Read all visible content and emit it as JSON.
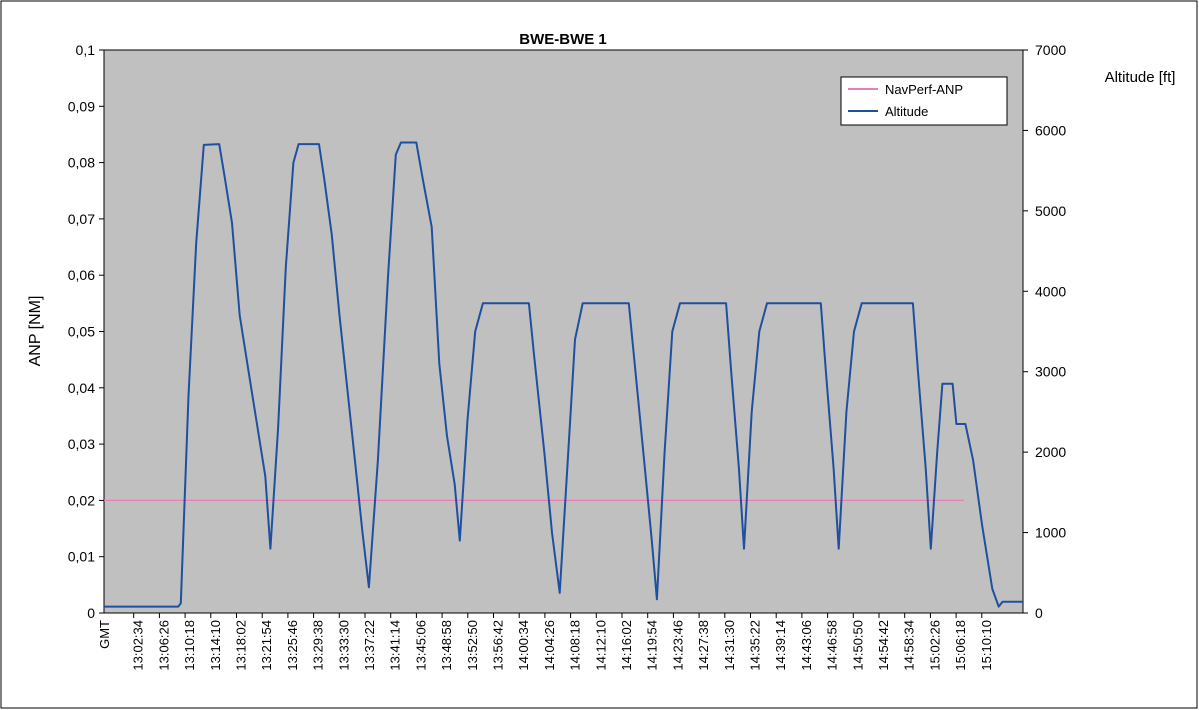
{
  "chart_data": {
    "type": "line",
    "title": "BWE-BWE 1",
    "ylabel": "ANP [NM]",
    "y2label": "Altitude [ft]",
    "xaxis_unit_label": "GMT",
    "ylim": [
      0,
      0.1
    ],
    "y2lim": [
      0,
      7000
    ],
    "yticks": [
      "0",
      "0,01",
      "0,02",
      "0,03",
      "0,04",
      "0,05",
      "0,06",
      "0,07",
      "0,08",
      "0,09",
      "0,1"
    ],
    "y2ticks": [
      "0",
      "1000",
      "2000",
      "3000",
      "4000",
      "5000",
      "6000",
      "7000"
    ],
    "x_ticks": [
      "13:02:34",
      "13:06:26",
      "13:10:18",
      "13:14:10",
      "13:18:02",
      "13:21:54",
      "13:25:46",
      "13:29:38",
      "13:33:30",
      "13:37:22",
      "13:41:14",
      "13:45:06",
      "13:48:58",
      "13:52:50",
      "13:56:42",
      "14:00:34",
      "14:04:26",
      "14:08:18",
      "14:12:10",
      "14:16:02",
      "14:19:54",
      "14:23:46",
      "14:27:38",
      "14:31:30",
      "14:35:22",
      "14:39:14",
      "14:43:06",
      "14:46:58",
      "14:50:50",
      "14:54:42",
      "14:58:34",
      "15:02:26",
      "15:06:18",
      "15:10:10"
    ],
    "grid": false,
    "legend_position": "top-right",
    "background_color": "#c0c0c0",
    "series": [
      {
        "name": "NavPerf-ANP",
        "axis": "left",
        "color": "#e67fb7",
        "points": [
          [
            0,
            0.02
          ],
          [
            33.6,
            0.02
          ]
        ]
      },
      {
        "name": "Altitude",
        "axis": "right",
        "color": "#1f4fa0",
        "points": [
          [
            0,
            80
          ],
          [
            2.9,
            80
          ],
          [
            3.0,
            120
          ],
          [
            3.3,
            2700
          ],
          [
            3.6,
            4600
          ],
          [
            3.9,
            5820
          ],
          [
            4.5,
            5830
          ],
          [
            4.7,
            5450
          ],
          [
            5.0,
            4850
          ],
          [
            5.3,
            3700
          ],
          [
            5.7,
            2900
          ],
          [
            6.0,
            2300
          ],
          [
            6.3,
            1700
          ],
          [
            6.5,
            800
          ],
          [
            6.8,
            2300
          ],
          [
            7.1,
            4300
          ],
          [
            7.4,
            5600
          ],
          [
            7.6,
            5830
          ],
          [
            8.4,
            5830
          ],
          [
            8.6,
            5400
          ],
          [
            8.9,
            4700
          ],
          [
            9.2,
            3700
          ],
          [
            9.5,
            2800
          ],
          [
            9.8,
            1900
          ],
          [
            10.1,
            1000
          ],
          [
            10.35,
            320
          ],
          [
            10.7,
            1900
          ],
          [
            11.1,
            4200
          ],
          [
            11.4,
            5700
          ],
          [
            11.6,
            5850
          ],
          [
            12.2,
            5850
          ],
          [
            12.45,
            5400
          ],
          [
            12.8,
            4800
          ],
          [
            13.1,
            3100
          ],
          [
            13.4,
            2200
          ],
          [
            13.7,
            1600
          ],
          [
            13.9,
            900
          ],
          [
            14.2,
            2400
          ],
          [
            14.5,
            3500
          ],
          [
            14.8,
            3850
          ],
          [
            16.6,
            3850
          ],
          [
            16.8,
            3200
          ],
          [
            17.2,
            2000
          ],
          [
            17.5,
            1000
          ],
          [
            17.8,
            250
          ],
          [
            18.1,
            1800
          ],
          [
            18.4,
            3400
          ],
          [
            18.7,
            3850
          ],
          [
            20.5,
            3850
          ],
          [
            20.7,
            3200
          ],
          [
            21.1,
            1900
          ],
          [
            21.4,
            900
          ],
          [
            21.6,
            170
          ],
          [
            21.9,
            2000
          ],
          [
            22.2,
            3500
          ],
          [
            22.5,
            3850
          ],
          [
            24.3,
            3850
          ],
          [
            24.5,
            3000
          ],
          [
            24.8,
            1800
          ],
          [
            25.0,
            800
          ],
          [
            25.3,
            2500
          ],
          [
            25.6,
            3500
          ],
          [
            25.9,
            3850
          ],
          [
            28.0,
            3850
          ],
          [
            28.2,
            3000
          ],
          [
            28.5,
            1800
          ],
          [
            28.7,
            800
          ],
          [
            29.0,
            2500
          ],
          [
            29.3,
            3500
          ],
          [
            29.6,
            3850
          ],
          [
            31.6,
            3850
          ],
          [
            31.8,
            3000
          ],
          [
            32.1,
            1800
          ],
          [
            32.3,
            800
          ],
          [
            32.55,
            2000
          ],
          [
            32.75,
            2850
          ],
          [
            33.15,
            2850
          ],
          [
            33.3,
            2350
          ],
          [
            33.65,
            2350
          ],
          [
            33.95,
            1900
          ],
          [
            34.3,
            1100
          ],
          [
            34.7,
            300
          ],
          [
            34.95,
            80
          ],
          [
            35.1,
            140
          ],
          [
            35.9,
            140
          ]
        ]
      }
    ]
  }
}
